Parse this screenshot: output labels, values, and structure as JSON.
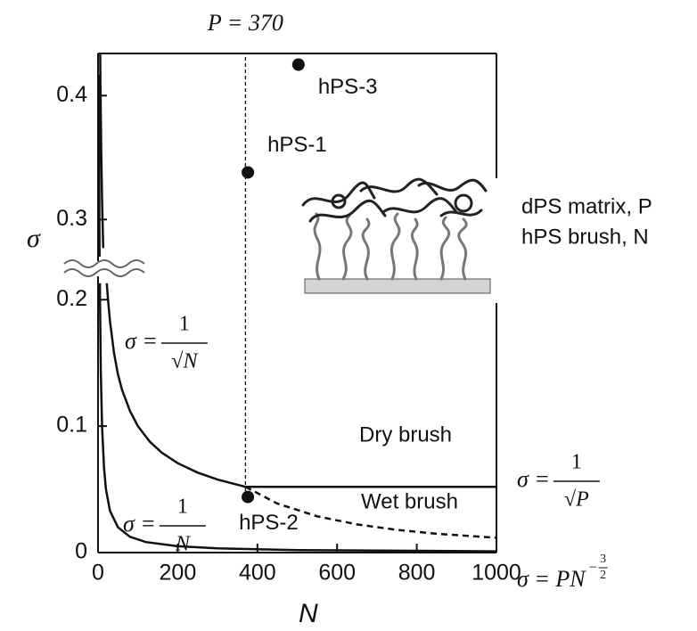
{
  "chart_data": {
    "type": "line",
    "x_label": "N",
    "y_label": "σ",
    "xlim": [
      0,
      1000
    ],
    "xticks": [
      0,
      200,
      400,
      600,
      800,
      1000
    ],
    "ylim": [
      0,
      0.434
    ],
    "y_break": [
      0.215,
      0.27
    ],
    "yticks": [
      0,
      0.1,
      0.2,
      0.3,
      0.4
    ],
    "series": [
      {
        "style": "solid",
        "color": "#111111",
        "x": [
          5.3,
          6,
          8,
          10,
          13,
          17,
          22,
          25,
          30,
          40,
          50,
          60,
          80,
          100,
          130,
          160,
          200,
          250,
          300,
          370
        ],
        "values": [
          0.434,
          0.408,
          0.354,
          0.316,
          0.277,
          null,
          0.213,
          0.2,
          0.183,
          0.158,
          0.141,
          0.129,
          0.112,
          0.1,
          0.0877,
          0.079,
          0.0707,
          0.0632,
          0.0577,
          0.052
        ]
      },
      {
        "style": "solid",
        "color": "#111111",
        "x": [
          2.4,
          2.7,
          3.3,
          3.7,
          4.2,
          4.7,
          5,
          7,
          10,
          15,
          20,
          30,
          50,
          80,
          120,
          200,
          300,
          500,
          1000
        ],
        "values": [
          0.417,
          0.37,
          0.3,
          0.27,
          null,
          0.213,
          0.2,
          0.143,
          0.1,
          0.067,
          0.05,
          0.033,
          0.02,
          0.0125,
          0.0083,
          0.005,
          0.0033,
          0.002,
          0.001
        ]
      },
      {
        "style": "solid",
        "color": "#111111",
        "x": [
          370,
          1000
        ],
        "values": [
          0.052,
          0.052
        ]
      },
      {
        "style": "dashed",
        "color": "#111111",
        "x": [
          370,
          450,
          550,
          650,
          750,
          850,
          1000
        ],
        "values": [
          0.052,
          0.0388,
          0.0287,
          0.0223,
          0.018,
          0.0149,
          0.0117
        ]
      }
    ],
    "points": {
      "color": "#111111",
      "x": [
        376,
        376,
        503
      ],
      "values": [
        0.338,
        0.044,
        0.425
      ],
      "labels": [
        "hPS-1",
        "hPS-2",
        "hPS-3"
      ]
    },
    "vline": {
      "x": 370,
      "label": "P = 370"
    },
    "region_labels": [
      "Dry brush",
      "Wet brush"
    ],
    "inset_labels": [
      "dPS matrix, P",
      "hPS brush, N"
    ],
    "formulas": [
      {
        "lhs": "σ =",
        "num": "1",
        "den": "√N"
      },
      {
        "lhs": "σ =",
        "num": "1",
        "den": "√P"
      },
      {
        "lhs": "σ =",
        "num": "1",
        "den": "N"
      },
      {
        "lhs": "σ = PN",
        "sup_sign": "−",
        "sup_num": "3",
        "sup_den": "2"
      }
    ]
  }
}
